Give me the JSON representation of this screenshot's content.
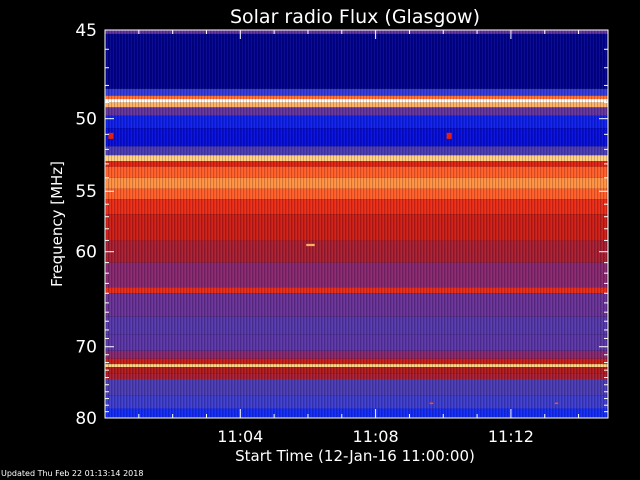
{
  "chart_data": {
    "type": "heatmap",
    "title": "Solar radio Flux (Glasgow)",
    "xlabel": "Start Time (12-Jan-16 11:00:00)",
    "ylabel": "Frequency [MHz]",
    "x_start": "11:00:00",
    "x_end": "11:14:52",
    "x_ticks": [
      "11:04",
      "11:08",
      "11:12"
    ],
    "x_tick_minutes": [
      4,
      8,
      12
    ],
    "x_span_minutes": 14.87,
    "y_ticks": [
      45,
      50,
      55,
      60,
      70,
      80
    ],
    "ylim": [
      45,
      80
    ],
    "y_scale": "reciprocal",
    "colormap": [
      "#00004a",
      "#0000c8",
      "#1a3cff",
      "#4a3ab0",
      "#7a2a80",
      "#b01818",
      "#e02010",
      "#ff5020",
      "#ff9040",
      "#ffd080",
      "#ffffff"
    ],
    "frequency_bands": [
      {
        "f_start": 44.6,
        "f_end": 45.2,
        "level": 0.35
      },
      {
        "f_start": 45.2,
        "f_end": 48.2,
        "level": 0.05
      },
      {
        "f_start": 48.2,
        "f_end": 48.6,
        "level": 0.25
      },
      {
        "f_start": 48.6,
        "f_end": 48.8,
        "level": 0.75
      },
      {
        "f_start": 48.8,
        "f_end": 49.0,
        "level": 1.0
      },
      {
        "f_start": 49.0,
        "f_end": 49.3,
        "level": 0.85
      },
      {
        "f_start": 49.3,
        "f_end": 49.8,
        "level": 0.35
      },
      {
        "f_start": 49.8,
        "f_end": 50.6,
        "level": 0.15
      },
      {
        "f_start": 50.6,
        "f_end": 51.8,
        "level": 0.12
      },
      {
        "f_start": 51.8,
        "f_end": 52.4,
        "level": 0.3
      },
      {
        "f_start": 52.4,
        "f_end": 52.8,
        "level": 0.9
      },
      {
        "f_start": 52.8,
        "f_end": 53.2,
        "level": 0.6
      },
      {
        "f_start": 53.2,
        "f_end": 54.0,
        "level": 0.72
      },
      {
        "f_start": 54.0,
        "f_end": 54.8,
        "level": 0.8
      },
      {
        "f_start": 54.8,
        "f_end": 55.6,
        "level": 0.72
      },
      {
        "f_start": 55.6,
        "f_end": 56.8,
        "level": 0.62
      },
      {
        "f_start": 56.8,
        "f_end": 59.0,
        "level": 0.55
      },
      {
        "f_start": 59.0,
        "f_end": 61.0,
        "level": 0.48
      },
      {
        "f_start": 61.0,
        "f_end": 63.4,
        "level": 0.42
      },
      {
        "f_start": 63.4,
        "f_end": 64.0,
        "level": 0.62
      },
      {
        "f_start": 64.0,
        "f_end": 66.5,
        "level": 0.36
      },
      {
        "f_start": 66.5,
        "f_end": 68.5,
        "level": 0.32
      },
      {
        "f_start": 68.5,
        "f_end": 70.5,
        "level": 0.33
      },
      {
        "f_start": 70.5,
        "f_end": 71.5,
        "level": 0.42
      },
      {
        "f_start": 71.5,
        "f_end": 72.2,
        "level": 0.55
      },
      {
        "f_start": 72.2,
        "f_end": 72.6,
        "level": 0.9
      },
      {
        "f_start": 72.6,
        "f_end": 73.4,
        "level": 0.5
      },
      {
        "f_start": 73.4,
        "f_end": 74.2,
        "level": 0.48
      },
      {
        "f_start": 74.2,
        "f_end": 76.5,
        "level": 0.3
      },
      {
        "f_start": 76.5,
        "f_end": 78.5,
        "level": 0.27
      },
      {
        "f_start": 78.5,
        "f_end": 80.4,
        "level": 0.17
      }
    ],
    "bursts": [
      {
        "t_min": 0.1,
        "t_max": 0.25,
        "f_min": 50.9,
        "f_max": 51.3,
        "level": 0.6
      },
      {
        "t_min": 10.1,
        "t_max": 10.25,
        "f_min": 50.9,
        "f_max": 51.3,
        "level": 0.6
      },
      {
        "t_min": 5.95,
        "t_max": 6.2,
        "f_min": 59.3,
        "f_max": 59.5,
        "level": 0.85
      },
      {
        "t_min": 9.6,
        "t_max": 9.7,
        "f_min": 77.6,
        "f_max": 77.8,
        "level": 0.7
      },
      {
        "t_min": 13.3,
        "t_max": 13.4,
        "f_min": 77.6,
        "f_max": 77.8,
        "level": 0.7
      }
    ]
  },
  "footer": {
    "updated": "Updated Thu Feb 22 01:13:14 2018"
  }
}
